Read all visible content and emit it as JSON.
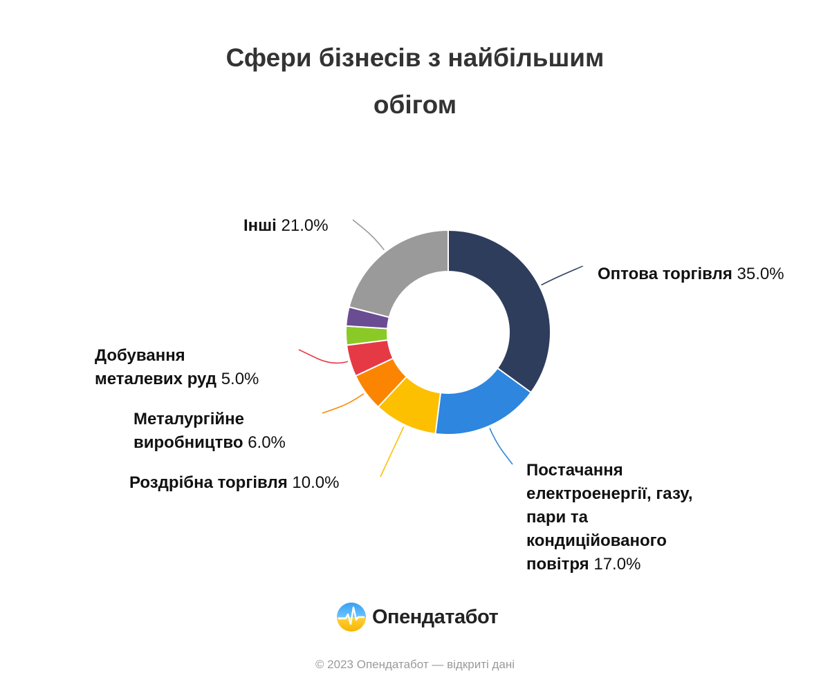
{
  "chart_data": {
    "type": "pie",
    "variant": "donut",
    "title_lines": [
      "Сфери бізнесів з найбільшим",
      "обігом"
    ],
    "slices": [
      {
        "label": "Оптова торгівля",
        "value": 35.0,
        "display": "35.0%",
        "color": "#2e3d5c"
      },
      {
        "label": "Постачання електроенергії, газу, пари та кондиційованого повітря",
        "label_lines": [
          "Постачання",
          "електроенергії, газу,",
          "пари та",
          "кондиційованого",
          "повітря"
        ],
        "value": 17.0,
        "display": "17.0%",
        "color": "#2e86de"
      },
      {
        "label": "Роздрібна торгівля",
        "value": 10.0,
        "display": "10.0%",
        "color": "#fcc000"
      },
      {
        "label": "Металургійне виробництво",
        "label_lines": [
          "Металургійне",
          "виробництво"
        ],
        "value": 6.0,
        "display": "6.0%",
        "color": "#fb8500"
      },
      {
        "label": "Добування металевих руд",
        "label_lines": [
          "Добування",
          "металевих руд"
        ],
        "value": 5.0,
        "display": "5.0%",
        "color": "#e63946"
      },
      {
        "label": "",
        "value": 3.0,
        "display": "",
        "color": "#8ac926"
      },
      {
        "label": "",
        "value": 3.0,
        "display": "",
        "color": "#6a4c93"
      },
      {
        "label": "Інші",
        "value": 21.0,
        "display": "21.0%",
        "color": "#9a9a9a"
      }
    ],
    "legend": "none",
    "data_labels": "outside with leader lines"
  },
  "branding": {
    "logo_text": "Опендатабот",
    "footer": "© 2023 Опендатабот — відкриті дані"
  }
}
